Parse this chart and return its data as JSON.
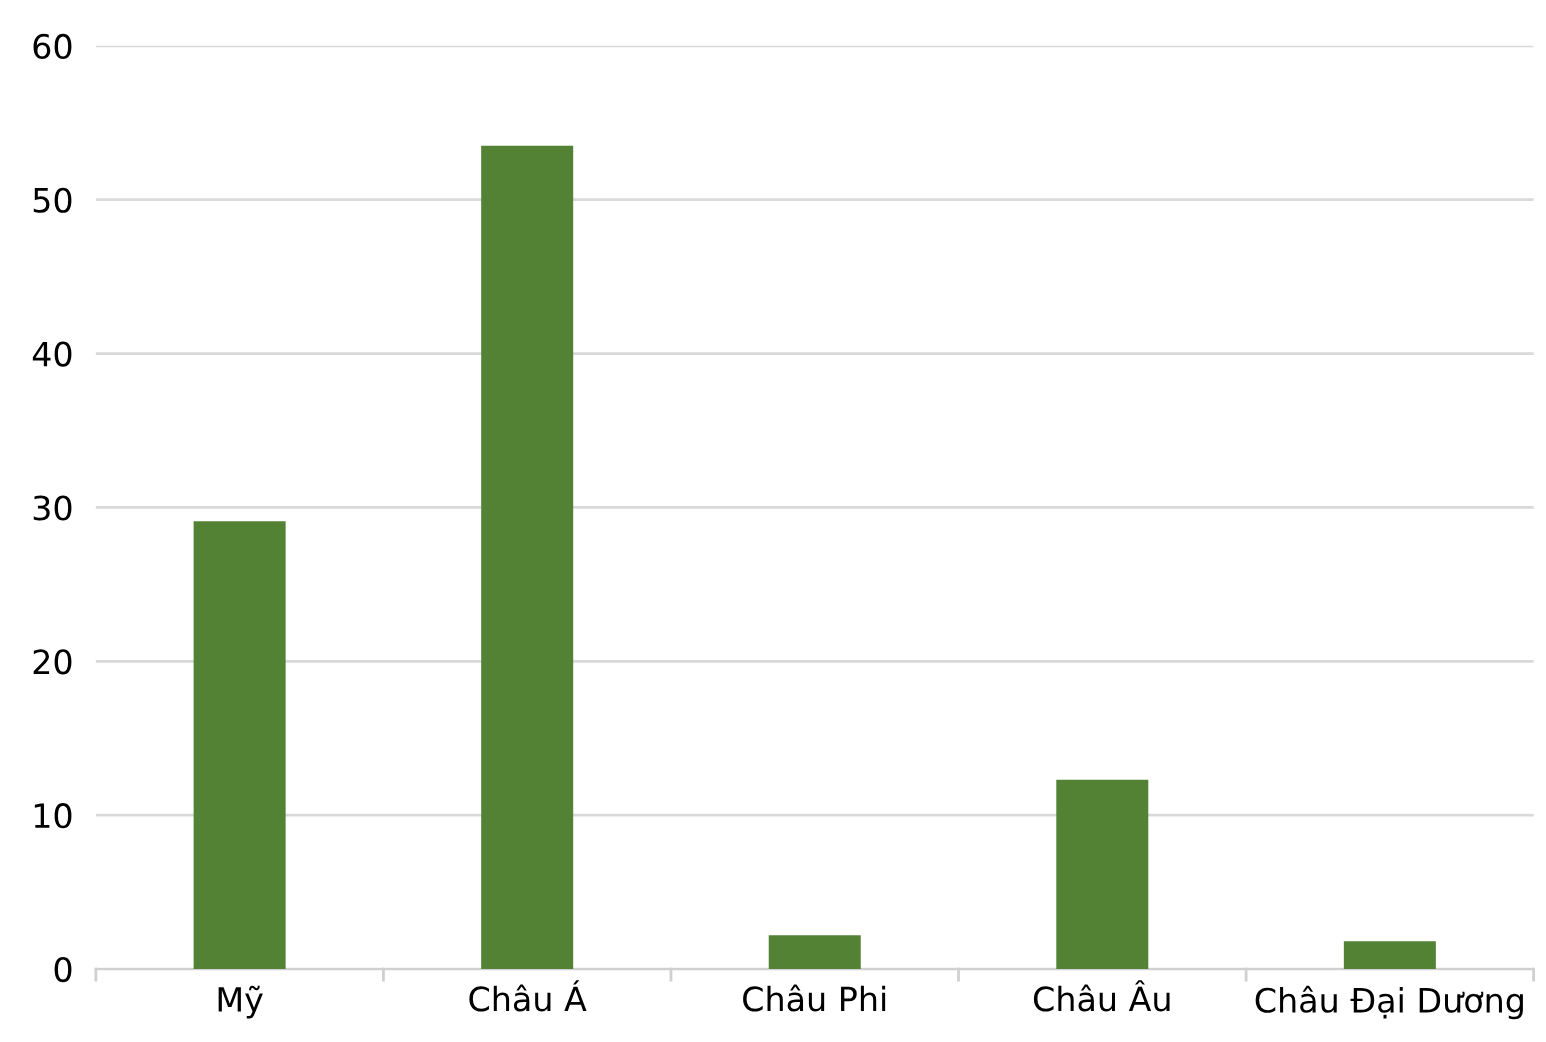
{
  "chart_data": {
    "type": "bar",
    "categories": [
      "Mỹ",
      "Châu Á",
      "Châu Phi",
      "Châu Âu",
      "Châu Đại Dương"
    ],
    "values": [
      29.1,
      53.5,
      2.2,
      12.3,
      1.8
    ],
    "color": "#548235",
    "ylim": [
      0,
      60
    ],
    "yticks": [
      0,
      10,
      20,
      30,
      40,
      50,
      60
    ],
    "grid": "y"
  }
}
